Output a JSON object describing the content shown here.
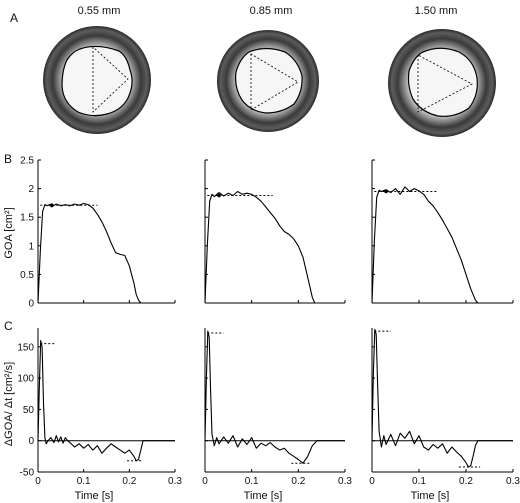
{
  "panel_labels": {
    "A": "A",
    "B": "B",
    "C": "C"
  },
  "thicknesses": [
    "0.55 mm",
    "0.85 mm",
    "1.50 mm"
  ],
  "colors": {
    "line": "#000000",
    "ring_dark": "#3a3a3a",
    "ring_mid": "#8a8a8a",
    "orifice": "#f4f4f4",
    "background": "#ffffff"
  },
  "chart_data": [
    {
      "type": "line",
      "panel": "B",
      "column": "0.55 mm",
      "ylabel": "GOA [cm²]",
      "xlabel": "",
      "xlim": [
        0,
        0.3
      ],
      "ylim": [
        0,
        2.5
      ],
      "yticks": [
        "0",
        "0.5",
        "1",
        "1.5",
        "2",
        "2.5"
      ],
      "x": [
        0,
        0.005,
        0.01,
        0.015,
        0.02,
        0.025,
        0.03,
        0.04,
        0.05,
        0.06,
        0.07,
        0.08,
        0.09,
        0.1,
        0.11,
        0.12,
        0.13,
        0.14,
        0.15,
        0.16,
        0.17,
        0.18,
        0.19,
        0.2,
        0.21,
        0.215,
        0.22,
        0.225,
        0.23,
        0.3
      ],
      "y": [
        0,
        0.9,
        1.6,
        1.72,
        1.7,
        1.72,
        1.68,
        1.73,
        1.7,
        1.72,
        1.7,
        1.73,
        1.71,
        1.74,
        1.72,
        1.66,
        1.55,
        1.42,
        1.25,
        1.05,
        0.88,
        0.85,
        0.83,
        0.65,
        0.35,
        0.15,
        0.05,
        0,
        0,
        0
      ],
      "ref_level": 1.71,
      "ref_x": [
        0.005,
        0.13
      ]
    },
    {
      "type": "line",
      "panel": "B",
      "column": "0.85 mm",
      "xlabel": "",
      "xlim": [
        0,
        0.3
      ],
      "ylim": [
        0,
        2.5
      ],
      "x": [
        0,
        0.005,
        0.01,
        0.015,
        0.02,
        0.03,
        0.04,
        0.05,
        0.06,
        0.07,
        0.08,
        0.09,
        0.1,
        0.11,
        0.12,
        0.13,
        0.14,
        0.15,
        0.16,
        0.17,
        0.18,
        0.19,
        0.2,
        0.21,
        0.22,
        0.23,
        0.235,
        0.24,
        0.3
      ],
      "y": [
        0,
        1.0,
        1.78,
        1.9,
        1.86,
        1.93,
        1.87,
        1.92,
        1.88,
        1.95,
        1.9,
        1.92,
        1.9,
        1.85,
        1.78,
        1.68,
        1.58,
        1.48,
        1.35,
        1.25,
        1.2,
        1.12,
        1.0,
        0.8,
        0.45,
        0.1,
        0,
        0,
        0
      ],
      "ref_level": 1.88,
      "ref_x": [
        0.005,
        0.145
      ]
    },
    {
      "type": "line",
      "panel": "B",
      "column": "1.50 mm",
      "xlabel": "",
      "xlim": [
        0,
        0.3
      ],
      "ylim": [
        0,
        2.5
      ],
      "x": [
        0,
        0.005,
        0.01,
        0.015,
        0.02,
        0.03,
        0.04,
        0.05,
        0.06,
        0.07,
        0.08,
        0.09,
        0.1,
        0.11,
        0.12,
        0.13,
        0.14,
        0.15,
        0.16,
        0.17,
        0.18,
        0.19,
        0.2,
        0.21,
        0.22,
        0.225,
        0.23,
        0.3
      ],
      "y": [
        0,
        1.1,
        1.85,
        1.97,
        1.95,
        1.98,
        1.93,
        2.0,
        1.9,
        2.03,
        1.95,
        2.0,
        1.96,
        1.9,
        1.78,
        1.7,
        1.58,
        1.45,
        1.3,
        1.15,
        0.95,
        0.75,
        0.5,
        0.25,
        0.05,
        0,
        0,
        0
      ],
      "ref_level": 1.95,
      "ref_x": [
        0.005,
        0.14
      ]
    },
    {
      "type": "line",
      "panel": "C",
      "column": "0.55 mm",
      "ylabel": "ΔGOA/ Δt [cm²/s]",
      "xlabel": "Time [s]",
      "xlim": [
        0,
        0.3
      ],
      "ylim": [
        -50,
        180
      ],
      "yticks": [
        "-50",
        "0",
        "50",
        "100",
        "150"
      ],
      "xticks": [
        "0",
        "0.1",
        "0.2",
        "0.3"
      ],
      "x": [
        0,
        0.003,
        0.006,
        0.009,
        0.012,
        0.015,
        0.018,
        0.022,
        0.028,
        0.035,
        0.04,
        0.045,
        0.05,
        0.055,
        0.06,
        0.065,
        0.07,
        0.08,
        0.09,
        0.1,
        0.11,
        0.12,
        0.13,
        0.14,
        0.15,
        0.16,
        0.17,
        0.18,
        0.19,
        0.2,
        0.21,
        0.215,
        0.22,
        0.225,
        0.23,
        0.3
      ],
      "y": [
        0,
        90,
        160,
        150,
        60,
        5,
        -5,
        0,
        5,
        -3,
        8,
        -2,
        6,
        -4,
        5,
        0,
        -3,
        -10,
        -5,
        -12,
        -6,
        -15,
        -8,
        -20,
        -12,
        -5,
        -10,
        -15,
        -20,
        -15,
        -25,
        -32,
        -30,
        -15,
        0,
        0
      ],
      "ref_max": 155,
      "ref_max_x": [
        0.005,
        0.04
      ],
      "ref_min": -32,
      "ref_min_x": [
        0.195,
        0.23
      ]
    },
    {
      "type": "line",
      "panel": "C",
      "column": "0.85 mm",
      "xlabel": "Time [s]",
      "xlim": [
        0,
        0.3
      ],
      "ylim": [
        -50,
        180
      ],
      "xticks": [
        "0",
        "0.1",
        "0.2",
        "0.3"
      ],
      "x": [
        0,
        0.003,
        0.006,
        0.009,
        0.012,
        0.015,
        0.02,
        0.025,
        0.03,
        0.04,
        0.05,
        0.06,
        0.07,
        0.08,
        0.09,
        0.1,
        0.11,
        0.12,
        0.13,
        0.14,
        0.15,
        0.16,
        0.17,
        0.18,
        0.19,
        0.2,
        0.21,
        0.22,
        0.23,
        0.24,
        0.3
      ],
      "y": [
        0,
        100,
        175,
        165,
        80,
        10,
        -8,
        5,
        -5,
        6,
        -4,
        8,
        -10,
        3,
        -6,
        5,
        -12,
        -4,
        -8,
        -3,
        -10,
        -15,
        -12,
        -20,
        -25,
        -30,
        -36,
        -25,
        -8,
        0,
        0
      ],
      "ref_max": 172,
      "ref_max_x": [
        0.005,
        0.04
      ],
      "ref_min": -36,
      "ref_min_x": [
        0.185,
        0.225
      ]
    },
    {
      "type": "line",
      "panel": "C",
      "column": "1.50 mm",
      "xlabel": "Time [s]",
      "xlim": [
        0,
        0.3
      ],
      "ylim": [
        -50,
        180
      ],
      "xticks": [
        "0",
        "0.1",
        "0.2",
        "0.3"
      ],
      "x": [
        0,
        0.003,
        0.006,
        0.009,
        0.012,
        0.015,
        0.02,
        0.025,
        0.03,
        0.04,
        0.05,
        0.06,
        0.07,
        0.08,
        0.09,
        0.1,
        0.11,
        0.12,
        0.13,
        0.14,
        0.15,
        0.16,
        0.17,
        0.18,
        0.19,
        0.2,
        0.205,
        0.21,
        0.215,
        0.22,
        0.225,
        0.3
      ],
      "y": [
        0,
        110,
        178,
        170,
        90,
        15,
        -10,
        8,
        -6,
        10,
        -8,
        12,
        4,
        15,
        -5,
        8,
        -10,
        -15,
        -6,
        -12,
        -5,
        -20,
        -10,
        -18,
        -25,
        -35,
        -42,
        -40,
        -25,
        -8,
        0,
        0
      ],
      "ref_max": 175,
      "ref_max_x": [
        0.005,
        0.04
      ],
      "ref_min": -42,
      "ref_min_x": [
        0.185,
        0.23
      ]
    }
  ]
}
